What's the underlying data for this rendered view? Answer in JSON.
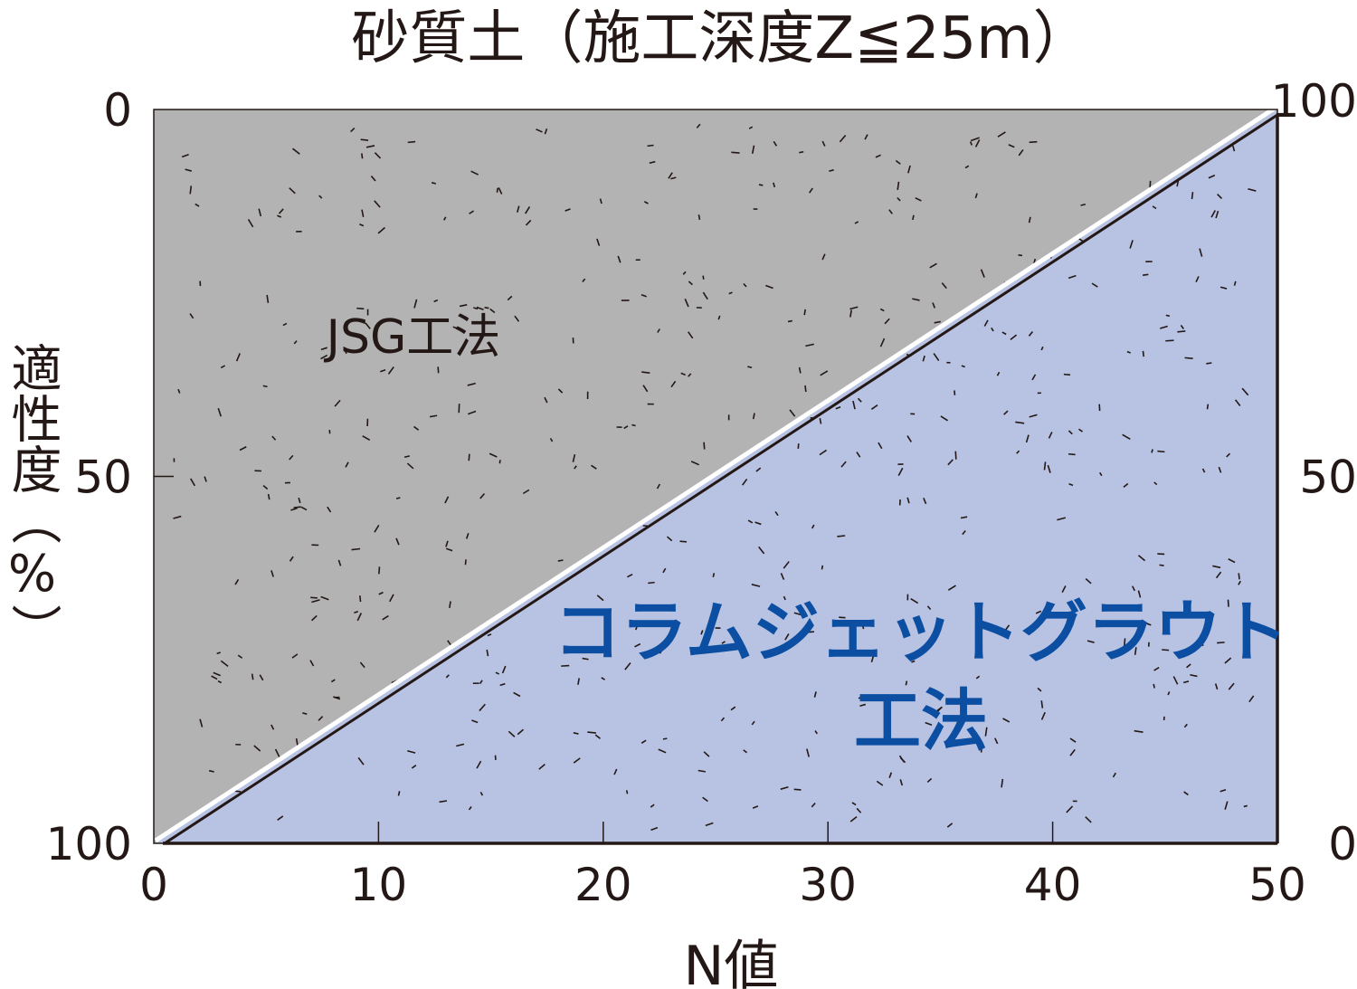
{
  "chart_data": {
    "type": "area",
    "title": "砂質土（施工深度Z≦25m）",
    "xlabel": "N値",
    "ylabel": "適性度（%）",
    "xlim": [
      0,
      50
    ],
    "x_ticks": [
      "0",
      "10",
      "20",
      "30",
      "40",
      "50"
    ],
    "y_left_ticks": [
      "0",
      "50",
      "100"
    ],
    "y_right_ticks": [
      "100",
      "50",
      "0"
    ],
    "series": [
      {
        "name": "JSG工法",
        "color": "#b3b3b3",
        "axis": "left-inverted",
        "x": [
          0,
          50
        ],
        "y": [
          100,
          0
        ]
      },
      {
        "name": "コラムジェットグラウト工法",
        "name_lines": [
          "コラムジェットグラウト",
          "工法"
        ],
        "color": "#b8c3e3",
        "axis": "right",
        "x": [
          0,
          50
        ],
        "y": [
          0,
          100
        ]
      }
    ],
    "grid": false
  }
}
